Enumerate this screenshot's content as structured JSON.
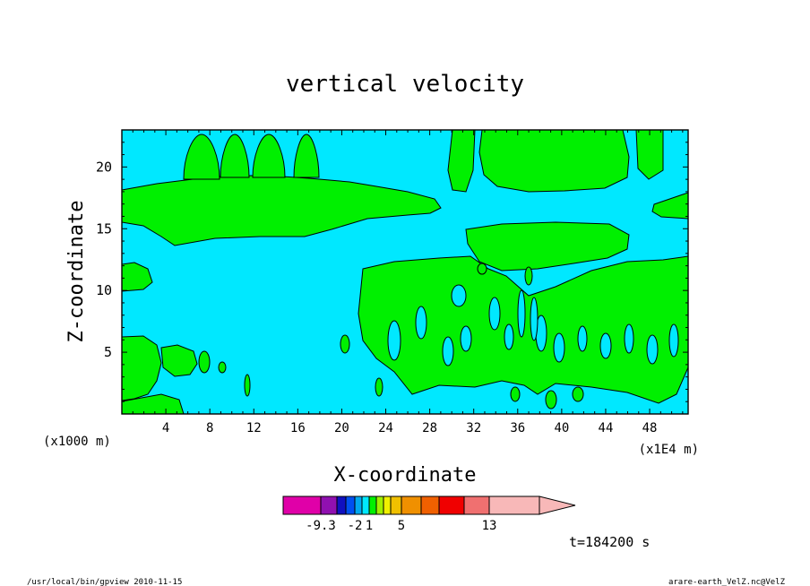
{
  "chart_data": {
    "type": "heatmap",
    "title": "vertical velocity",
    "xlabel": "X-coordinate",
    "ylabel": "Z-coordinate",
    "x_unit_left": "(x1000 m)",
    "x_unit_right": "(x1E4 m)",
    "xlim": [
      0,
      51.5
    ],
    "ylim": [
      0,
      23
    ],
    "x_ticks": [
      4,
      8,
      12,
      16,
      20,
      24,
      28,
      32,
      36,
      40,
      44,
      48
    ],
    "y_ticks": [
      5,
      10,
      15,
      20
    ],
    "time_label": "t=184200 s",
    "colorbar": {
      "labels": [
        {
          "text": "-9.3",
          "value": -9.3
        },
        {
          "text": "-2",
          "value": -2
        },
        {
          "text": "1",
          "value": 1
        },
        {
          "text": "5",
          "value": 5
        },
        {
          "text": "13",
          "value": 13
        }
      ],
      "colors": [
        "#e000a8",
        "#9010b0",
        "#1010c0",
        "#0050f0",
        "#00a8f0",
        "#00e8ff",
        "#00f000",
        "#a0f000",
        "#f0f000",
        "#f0c000",
        "#f09000",
        "#f06000",
        "#f00000",
        "#f07070",
        "#f8b8b8"
      ]
    },
    "field_colors": {
      "background": "#00e8ff",
      "updraft": "#00f000"
    }
  },
  "footer": {
    "left": "/usr/local/bin/gpview  2010-11-15",
    "right": "arare-earth_VelZ.nc@VelZ"
  }
}
